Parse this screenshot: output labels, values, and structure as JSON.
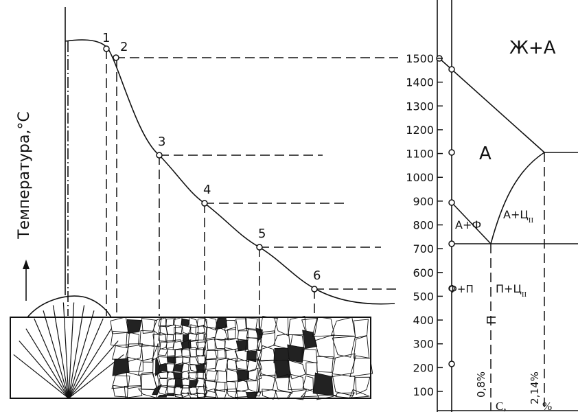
{
  "y_axis_label": "Температура,°С",
  "points": [
    "1",
    "2",
    "3",
    "4",
    "5",
    "6"
  ],
  "phase_diagram": {
    "yticks": [
      100,
      200,
      300,
      400,
      500,
      600,
      700,
      800,
      900,
      1000,
      1100,
      1200,
      1300,
      1400,
      1500
    ],
    "regions": {
      "liquid_austenite": "Ж+А",
      "austenite": "А",
      "austenite_ferrite": "А+Ф",
      "austenite_cementite": {
        "text": "А+Ц",
        "subscript": "II"
      },
      "ferrite_pearlite": "Ф+П",
      "pearlite_cementite": {
        "text": "П+Ц",
        "subscript": "II"
      },
      "pearlite": "П"
    },
    "carbon_marks": [
      "0,8%",
      "2,14%"
    ],
    "x_label": [
      "С,",
      "%"
    ]
  }
}
